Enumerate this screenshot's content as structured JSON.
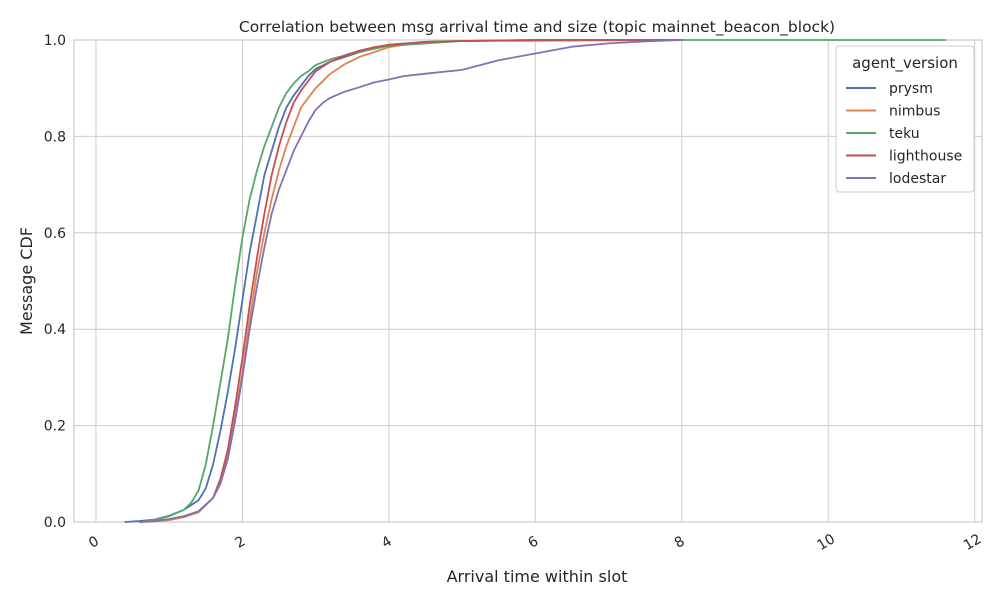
{
  "chart_data": {
    "type": "line",
    "title": "Correlation between msg arrival time and size (topic mainnet_beacon_block)",
    "xlabel": "Arrival time within slot",
    "ylabel": "Message CDF",
    "xlim": [
      -0.3,
      12.1
    ],
    "ylim": [
      0,
      1
    ],
    "xticks": [
      0,
      2,
      4,
      6,
      8,
      10,
      12
    ],
    "xtick_labels": [
      "0",
      "2",
      "4",
      "6",
      "8",
      "10",
      "12"
    ],
    "yticks": [
      0,
      0.2,
      0.4,
      0.6,
      0.8,
      1.0
    ],
    "ytick_labels": [
      "0.0",
      "0.2",
      "0.4",
      "0.6",
      "0.8",
      "1.0"
    ],
    "grid": true,
    "legend": {
      "title": "agent_version",
      "placement": "top-right"
    },
    "series": [
      {
        "name": "prysm",
        "color": "#4c72b0",
        "x": [
          0.4,
          0.6,
          0.8,
          1.0,
          1.2,
          1.4,
          1.5,
          1.6,
          1.7,
          1.8,
          1.9,
          2.0,
          2.1,
          2.2,
          2.3,
          2.4,
          2.5,
          2.6,
          2.7,
          2.8,
          2.9,
          3.0,
          3.2,
          3.4,
          3.6,
          3.8,
          4.0,
          4.5,
          5.0,
          6.0,
          8.0
        ],
        "y": [
          0.0,
          0.002,
          0.005,
          0.013,
          0.025,
          0.045,
          0.07,
          0.12,
          0.19,
          0.27,
          0.36,
          0.46,
          0.56,
          0.64,
          0.72,
          0.77,
          0.82,
          0.86,
          0.885,
          0.905,
          0.925,
          0.94,
          0.955,
          0.965,
          0.975,
          0.983,
          0.99,
          0.996,
          0.998,
          1.0,
          1.0
        ]
      },
      {
        "name": "nimbus",
        "color": "#dd8452",
        "x": [
          0.6,
          0.8,
          1.0,
          1.2,
          1.4,
          1.6,
          1.7,
          1.8,
          1.9,
          2.0,
          2.1,
          2.2,
          2.3,
          2.4,
          2.5,
          2.6,
          2.7,
          2.8,
          2.9,
          3.0,
          3.2,
          3.4,
          3.6,
          3.8,
          4.0,
          4.2,
          4.5,
          5.0,
          6.0,
          8.0
        ],
        "y": [
          0.0,
          0.001,
          0.004,
          0.01,
          0.02,
          0.05,
          0.08,
          0.14,
          0.22,
          0.31,
          0.42,
          0.52,
          0.6,
          0.67,
          0.73,
          0.78,
          0.82,
          0.86,
          0.88,
          0.9,
          0.93,
          0.95,
          0.965,
          0.975,
          0.985,
          0.99,
          0.995,
          0.998,
          1.0,
          1.0
        ]
      },
      {
        "name": "teku",
        "color": "#55a868",
        "x": [
          0.6,
          0.8,
          1.0,
          1.2,
          1.3,
          1.4,
          1.5,
          1.6,
          1.7,
          1.8,
          1.9,
          2.0,
          2.1,
          2.2,
          2.3,
          2.4,
          2.5,
          2.6,
          2.7,
          2.8,
          2.9,
          3.0,
          3.2,
          3.5,
          4.0,
          5.0,
          8.0,
          11.6
        ],
        "y": [
          0.0,
          0.004,
          0.012,
          0.025,
          0.04,
          0.065,
          0.12,
          0.2,
          0.29,
          0.38,
          0.49,
          0.59,
          0.67,
          0.73,
          0.78,
          0.82,
          0.86,
          0.89,
          0.91,
          0.925,
          0.935,
          0.948,
          0.96,
          0.972,
          0.988,
          0.998,
          1.0,
          1.0
        ]
      },
      {
        "name": "lighthouse",
        "color": "#c44e52",
        "x": [
          0.6,
          0.8,
          1.0,
          1.2,
          1.4,
          1.6,
          1.7,
          1.8,
          1.9,
          2.0,
          2.1,
          2.2,
          2.3,
          2.4,
          2.5,
          2.6,
          2.7,
          2.8,
          2.9,
          3.0,
          3.2,
          3.4,
          3.6,
          3.8,
          4.0,
          4.5,
          5.0,
          6.0,
          8.0
        ],
        "y": [
          0.0,
          0.002,
          0.006,
          0.012,
          0.022,
          0.05,
          0.09,
          0.15,
          0.24,
          0.34,
          0.45,
          0.55,
          0.64,
          0.72,
          0.78,
          0.83,
          0.87,
          0.895,
          0.915,
          0.935,
          0.955,
          0.968,
          0.978,
          0.985,
          0.99,
          0.996,
          0.998,
          1.0,
          1.0
        ]
      },
      {
        "name": "lodestar",
        "color": "#8172b3",
        "x": [
          0.6,
          0.8,
          1.0,
          1.2,
          1.4,
          1.6,
          1.7,
          1.8,
          1.9,
          2.0,
          2.1,
          2.2,
          2.3,
          2.4,
          2.5,
          2.6,
          2.7,
          2.8,
          2.9,
          3.0,
          3.1,
          3.2,
          3.4,
          3.6,
          3.8,
          4.0,
          4.2,
          4.5,
          5.0,
          5.5,
          6.0,
          6.5,
          7.0,
          7.5,
          8.0
        ],
        "y": [
          0.0,
          0.002,
          0.006,
          0.012,
          0.022,
          0.05,
          0.08,
          0.13,
          0.21,
          0.3,
          0.4,
          0.49,
          0.57,
          0.64,
          0.69,
          0.73,
          0.77,
          0.8,
          0.83,
          0.855,
          0.87,
          0.88,
          0.893,
          0.902,
          0.912,
          0.918,
          0.925,
          0.93,
          0.938,
          0.958,
          0.972,
          0.986,
          0.993,
          0.997,
          1.0
        ]
      }
    ]
  }
}
